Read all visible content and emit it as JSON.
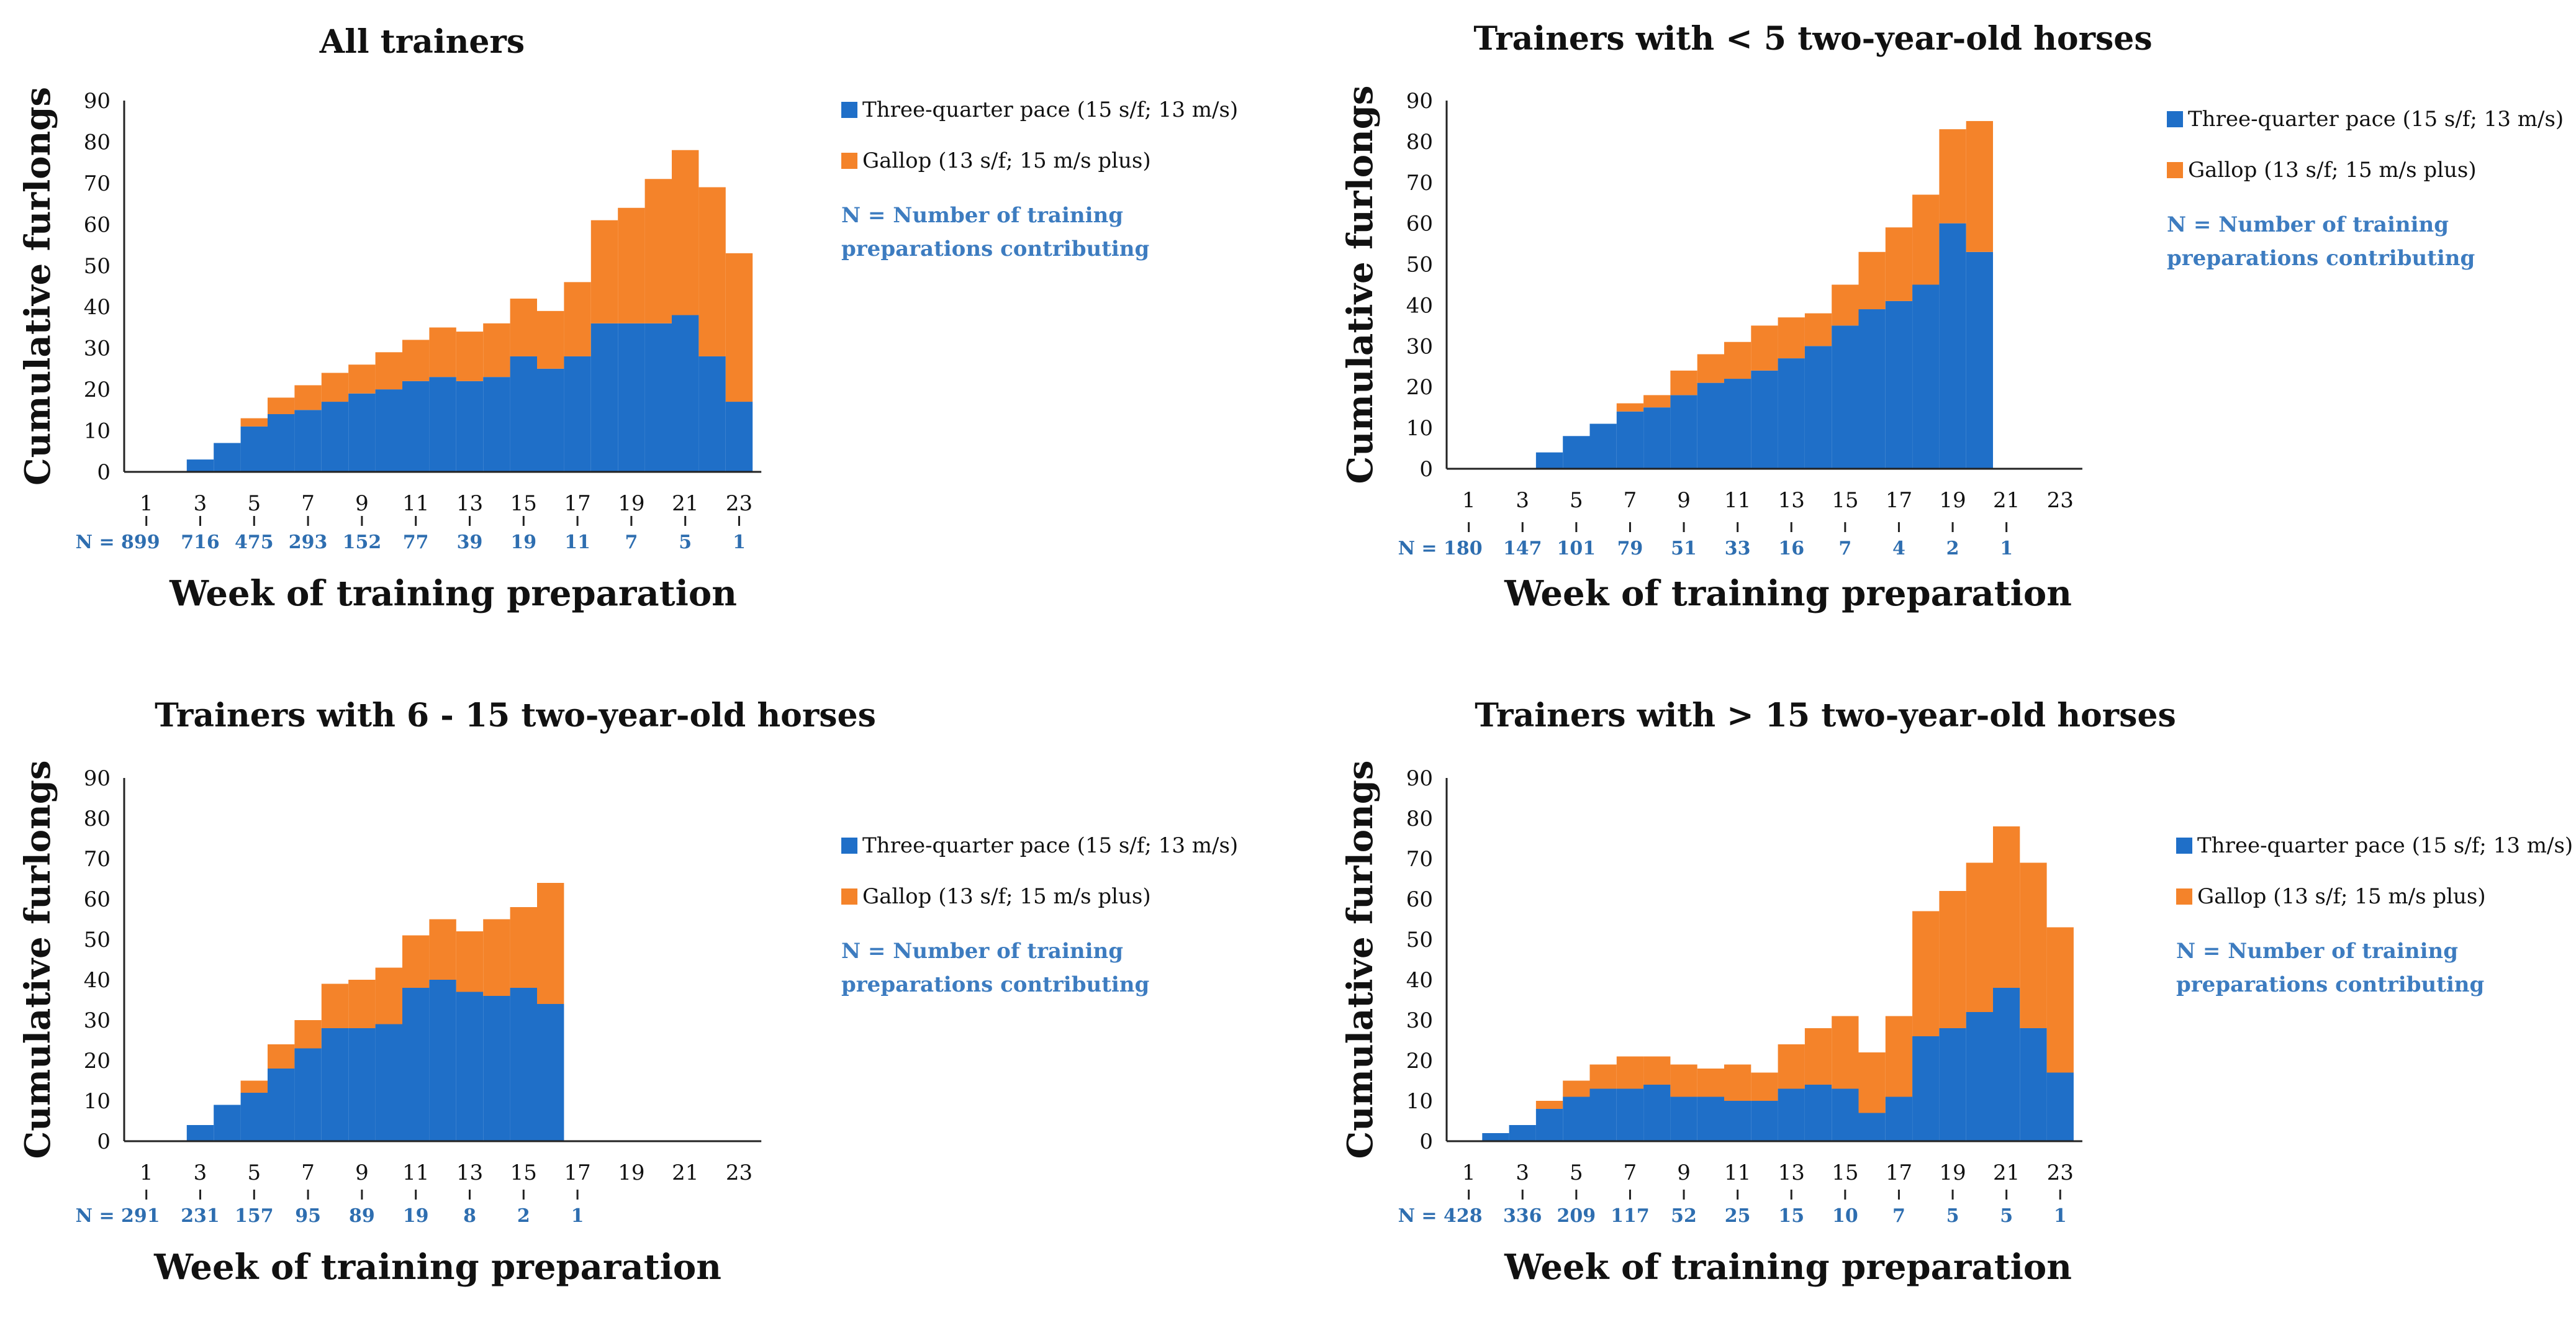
{
  "legend": {
    "three_quarter": "Three-quarter pace (15 s/f; 13 m/s)",
    "gallop": "Gallop (13 s/f; 15 m/s plus)",
    "note_line1": "N = Number of training",
    "note_line2": "preparations contributing"
  },
  "colors": {
    "three_quarter": "#1f6fc8",
    "gallop": "#f4832a"
  },
  "chart_data": [
    {
      "type": "bar",
      "stacked": true,
      "title": "All trainers",
      "xlabel": "Week of training preparation",
      "ylabel": "Cumulative furlongs",
      "ylim": [
        0,
        90
      ],
      "yticks": [
        0,
        10,
        20,
        30,
        40,
        50,
        60,
        70,
        80,
        90
      ],
      "xticks": [
        1,
        3,
        5,
        7,
        9,
        11,
        13,
        15,
        17,
        19,
        21,
        23
      ],
      "n_labels": [
        "N = 899",
        "716",
        "475",
        "293",
        "152",
        "77",
        "39",
        "19",
        "11",
        "7",
        "5",
        "1"
      ],
      "categories": [
        1,
        2,
        3,
        4,
        5,
        6,
        7,
        8,
        9,
        10,
        11,
        12,
        13,
        14,
        15,
        16,
        17,
        18,
        19,
        20,
        21,
        22,
        23
      ],
      "series": [
        {
          "name": "Three-quarter pace (15 s/f; 13 m/s)",
          "values": [
            0,
            0,
            3,
            7,
            11,
            14,
            15,
            17,
            19,
            20,
            22,
            23,
            22,
            23,
            28,
            25,
            28,
            36,
            36,
            36,
            38,
            28,
            17
          ]
        },
        {
          "name": "Gallop (13 s/f; 15 m/s plus)",
          "values": [
            0,
            0,
            0,
            0,
            2,
            4,
            6,
            7,
            7,
            9,
            10,
            12,
            12,
            13,
            14,
            14,
            18,
            25,
            28,
            35,
            40,
            41,
            36
          ]
        }
      ]
    },
    {
      "type": "bar",
      "stacked": true,
      "title": "Trainers with < 5 two-year-old horses",
      "xlabel": "Week of training preparation",
      "ylabel": "Cumulative furlongs",
      "ylim": [
        0,
        90
      ],
      "yticks": [
        0,
        10,
        20,
        30,
        40,
        50,
        60,
        70,
        80,
        90
      ],
      "xticks": [
        1,
        3,
        5,
        7,
        9,
        11,
        13,
        15,
        17,
        19,
        21,
        23
      ],
      "n_labels": [
        "N = 180",
        "147",
        "101",
        "79",
        "51",
        "33",
        "16",
        "7",
        "4",
        "2",
        "1"
      ],
      "categories": [
        1,
        2,
        3,
        4,
        5,
        6,
        7,
        8,
        9,
        10,
        11,
        12,
        13,
        14,
        15,
        16,
        17,
        18,
        19,
        20,
        21,
        22,
        23
      ],
      "series": [
        {
          "name": "Three-quarter pace (15 s/f; 13 m/s)",
          "values": [
            0,
            0,
            0,
            4,
            8,
            11,
            14,
            15,
            18,
            21,
            22,
            24,
            27,
            30,
            35,
            39,
            41,
            45,
            60,
            53,
            0,
            0,
            0
          ]
        },
        {
          "name": "Gallop (13 s/f; 15 m/s plus)",
          "values": [
            0,
            0,
            0,
            0,
            0,
            0,
            2,
            3,
            6,
            7,
            9,
            11,
            10,
            8,
            10,
            14,
            18,
            22,
            23,
            32,
            0,
            0,
            0
          ]
        }
      ]
    },
    {
      "type": "bar",
      "stacked": true,
      "title": "Trainers with 6 - 15 two-year-old horses",
      "xlabel": "Week of training preparation",
      "ylabel": "Cumulative furlongs",
      "ylim": [
        0,
        90
      ],
      "yticks": [
        0,
        10,
        20,
        30,
        40,
        50,
        60,
        70,
        80,
        90
      ],
      "xticks": [
        1,
        3,
        5,
        7,
        9,
        11,
        13,
        15,
        17,
        19,
        21,
        23
      ],
      "n_labels": [
        "N = 291",
        "231",
        "157",
        "95",
        "89",
        "19",
        "8",
        "2",
        "1"
      ],
      "categories": [
        1,
        2,
        3,
        4,
        5,
        6,
        7,
        8,
        9,
        10,
        11,
        12,
        13,
        14,
        15,
        16,
        17,
        18,
        19,
        20,
        21,
        22,
        23
      ],
      "series": [
        {
          "name": "Three-quarter pace (15 s/f; 13 m/s)",
          "values": [
            0,
            0,
            4,
            9,
            12,
            18,
            23,
            28,
            28,
            29,
            38,
            40,
            37,
            36,
            38,
            34,
            0,
            0,
            0,
            0,
            0,
            0,
            0
          ]
        },
        {
          "name": "Gallop (13 s/f; 15 m/s plus)",
          "values": [
            0,
            0,
            0,
            0,
            3,
            6,
            7,
            11,
            12,
            14,
            13,
            15,
            15,
            19,
            20,
            30,
            0,
            0,
            0,
            0,
            0,
            0,
            0
          ]
        }
      ]
    },
    {
      "type": "bar",
      "stacked": true,
      "title": "Trainers with > 15 two-year-old horses",
      "xlabel": "Week of training preparation",
      "ylabel": "Cumulative furlongs",
      "ylim": [
        0,
        90
      ],
      "yticks": [
        0,
        10,
        20,
        30,
        40,
        50,
        60,
        70,
        80,
        90
      ],
      "xticks": [
        1,
        3,
        5,
        7,
        9,
        11,
        13,
        15,
        17,
        19,
        21,
        23
      ],
      "n_labels": [
        "N = 428",
        "336",
        "209",
        "117",
        "52",
        "25",
        "15",
        "10",
        "7",
        "5",
        "5",
        "1"
      ],
      "categories": [
        1,
        2,
        3,
        4,
        5,
        6,
        7,
        8,
        9,
        10,
        11,
        12,
        13,
        14,
        15,
        16,
        17,
        18,
        19,
        20,
        21,
        22,
        23
      ],
      "series": [
        {
          "name": "Three-quarter pace (15 s/f; 13 m/s)",
          "values": [
            0,
            2,
            4,
            8,
            11,
            13,
            13,
            14,
            11,
            11,
            10,
            10,
            13,
            14,
            13,
            7,
            11,
            26,
            28,
            32,
            38,
            28,
            17
          ]
        },
        {
          "name": "Gallop (13 s/f; 15 m/s plus)",
          "values": [
            0,
            0,
            0,
            2,
            4,
            6,
            8,
            7,
            8,
            7,
            9,
            7,
            11,
            14,
            18,
            15,
            20,
            31,
            34,
            37,
            40,
            41,
            36
          ]
        }
      ]
    }
  ]
}
